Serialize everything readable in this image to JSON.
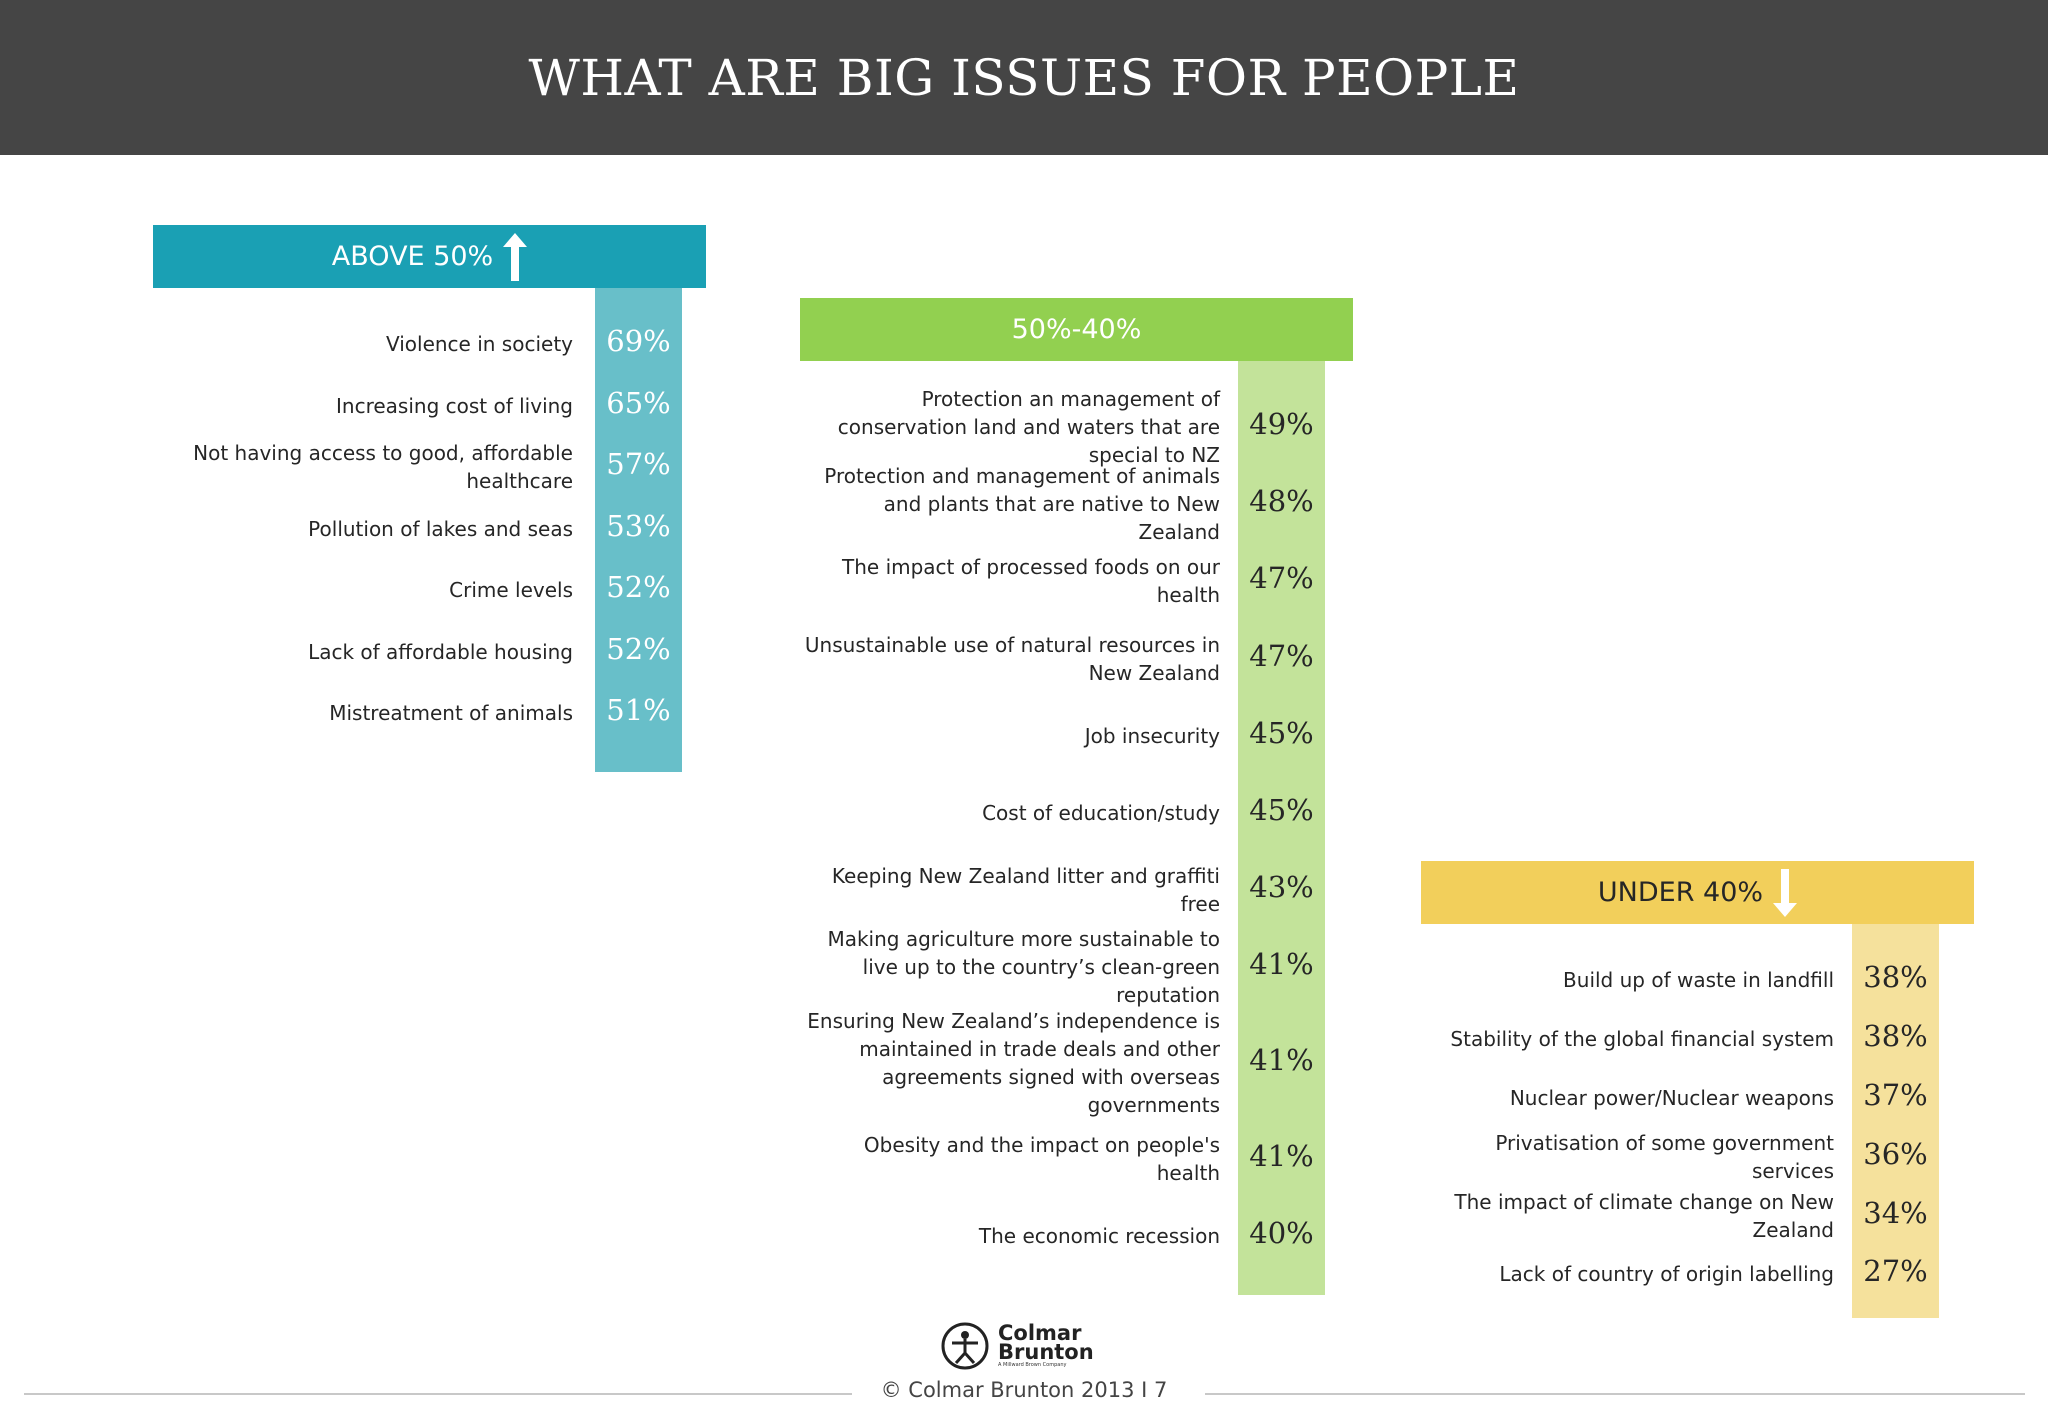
{
  "header": {
    "title": "WHAT ARE BIG ISSUES FOR PEOPLE"
  },
  "colors": {
    "title_bg": "#454545",
    "above_header": "#1aa0b4",
    "above_col": "#68bfc9",
    "mid_header": "#92d050",
    "mid_col": "#c3e39a",
    "under_header": "#f2cf5b",
    "under_col": "#f5e19c"
  },
  "chart_data": {
    "type": "table",
    "title": "WHAT ARE BIG ISSUES FOR PEOPLE",
    "groups": [
      {
        "name": "ABOVE 50%",
        "arrow": "up-arrow",
        "items": [
          {
            "label": "Violence in society",
            "value": "69%"
          },
          {
            "label": "Increasing cost of living",
            "value": "65%"
          },
          {
            "label": "Not having access to good, affordable healthcare",
            "value": "57%"
          },
          {
            "label": "Pollution of lakes and seas",
            "value": "53%"
          },
          {
            "label": "Crime levels",
            "value": "52%"
          },
          {
            "label": "Lack of affordable housing",
            "value": "52%"
          },
          {
            "label": "Mistreatment of animals",
            "value": "51%"
          }
        ]
      },
      {
        "name": "50%-40%",
        "arrow": "",
        "items": [
          {
            "label": "Protection an management of conservation land and waters that are special to NZ",
            "value": "49%"
          },
          {
            "label": "Protection and management of animals and plants that are native to New Zealand",
            "value": "48%"
          },
          {
            "label": "The impact of processed foods on our health",
            "value": "47%"
          },
          {
            "label": "Unsustainable use of natural resources in New Zealand",
            "value": "47%"
          },
          {
            "label": "Job insecurity",
            "value": "45%"
          },
          {
            "label": "Cost of education/study",
            "value": "45%"
          },
          {
            "label": "Keeping New Zealand litter and graffiti free",
            "value": "43%"
          },
          {
            "label": "Making agriculture more sustainable to live up to the country’s clean-green reputation",
            "value": "41%"
          },
          {
            "label": "Ensuring New Zealand’s independence is maintained in trade deals and other agreements signed with overseas governments",
            "value": "41%"
          },
          {
            "label": "Obesity and the impact on people's health",
            "value": "41%"
          },
          {
            "label": "The economic recession",
            "value": "40%"
          }
        ]
      },
      {
        "name": "UNDER 40%",
        "arrow": "down-arrow",
        "items": [
          {
            "label": "Build up of waste in landfill",
            "value": "38%"
          },
          {
            "label": "Stability of the global financial system",
            "value": "38%"
          },
          {
            "label": "Nuclear power/Nuclear weapons",
            "value": "37%"
          },
          {
            "label": "Privatisation of some government services",
            "value": "36%"
          },
          {
            "label": "The impact of climate change on New Zealand",
            "value": "34%"
          },
          {
            "label": "Lack of country of origin labelling",
            "value": "27%"
          }
        ]
      }
    ]
  },
  "footer": {
    "logo_line1": "Colmar",
    "logo_line2": "Brunton",
    "logo_tagline": "A Millward Brown Company",
    "copyright": "© Colmar Brunton 2013  I  7"
  }
}
